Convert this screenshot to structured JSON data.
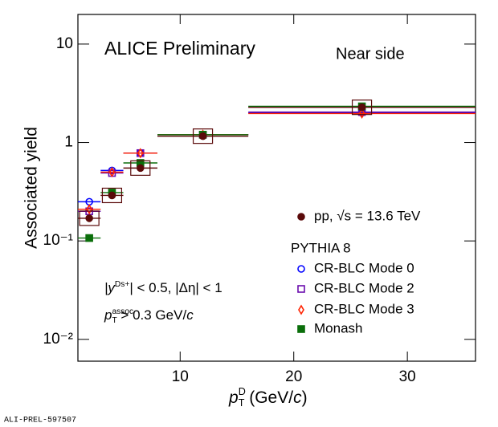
{
  "chart_data": {
    "type": "scatter",
    "title": "ALICE Preliminary",
    "subtitle": "Near side",
    "x_label": [
      "p",
      "D",
      "T",
      " (GeV/",
      "c",
      ")"
    ],
    "y_label": "Associated yield",
    "footer": "ALI-PREL-597507",
    "legend_header": "PYTHIA 8",
    "annotations": [
      [
        "|y",
        "Ds+",
        "| < 0.5, |Δη| < 1"
      ],
      [
        "p",
        "assoc",
        "T",
        " > 0.3 GeV/",
        "c"
      ]
    ],
    "bins": [
      1,
      3,
      5,
      8,
      16,
      36
    ],
    "xlim": [
      1,
      36
    ],
    "xticks": [
      10,
      20,
      30
    ],
    "ylim": [
      0.006,
      20
    ],
    "ylog": true,
    "yticks": [
      {
        "value": 0.01,
        "label": "10⁻²"
      },
      {
        "value": 0.1,
        "label": "10⁻¹"
      },
      1,
      10
    ],
    "series": [
      {
        "name": "pp,   √s = 13.6 TeV",
        "color": "#5a0a0a",
        "marker": "circle-filled",
        "values": [
          0.17,
          0.29,
          0.55,
          1.16,
          2.28
        ]
      },
      {
        "name": "CR-BLC Mode 0",
        "color": "#0000ff",
        "marker": "circle-open",
        "values": [
          0.25,
          0.52,
          0.78,
          1.2,
          2.0
        ]
      },
      {
        "name": "CR-BLC Mode 2",
        "color": "#6a0dad",
        "marker": "square-open",
        "values": [
          0.2,
          0.49,
          0.78,
          1.2,
          2.04
        ]
      },
      {
        "name": "CR-BLC Mode 3",
        "color": "#ff2200",
        "marker": "diamond-open",
        "values": [
          0.21,
          0.5,
          0.78,
          1.2,
          1.97
        ]
      },
      {
        "name": "Monash",
        "color": "#0a6e0a",
        "marker": "square-filled",
        "values": [
          0.107,
          0.31,
          0.62,
          1.2,
          2.33
        ]
      }
    ]
  }
}
